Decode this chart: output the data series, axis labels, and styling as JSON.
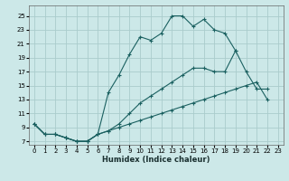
{
  "xlabel": "Humidex (Indice chaleur)",
  "bg_color": "#cce8e8",
  "grid_color": "#aacccc",
  "line_color": "#1a6060",
  "xlim": [
    -0.5,
    23.5
  ],
  "ylim": [
    6.5,
    26.5
  ],
  "yticks": [
    7,
    9,
    11,
    13,
    15,
    17,
    19,
    21,
    23,
    25
  ],
  "xticks": [
    0,
    1,
    2,
    3,
    4,
    5,
    6,
    7,
    8,
    9,
    10,
    11,
    12,
    13,
    14,
    15,
    16,
    17,
    18,
    19,
    20,
    21,
    22,
    23
  ],
  "series": [
    {
      "x": [
        0,
        1,
        2,
        3,
        4,
        5,
        6,
        7,
        8,
        9,
        10,
        11,
        12,
        13,
        14,
        15,
        16,
        17,
        18,
        19
      ],
      "y": [
        9.5,
        8.0,
        8.0,
        7.5,
        7.0,
        7.0,
        8.0,
        14.0,
        16.5,
        19.5,
        22.0,
        21.5,
        22.5,
        25.0,
        25.0,
        23.5,
        24.5,
        23.0,
        22.5,
        20.0
      ]
    },
    {
      "x": [
        0,
        1,
        2,
        3,
        4,
        5,
        6,
        7,
        8,
        9,
        10,
        11,
        12,
        13,
        14,
        15,
        16,
        17,
        18,
        19,
        20,
        21,
        22
      ],
      "y": [
        9.5,
        8.0,
        8.0,
        7.5,
        7.0,
        7.0,
        8.0,
        8.5,
        9.5,
        11.0,
        12.5,
        13.5,
        14.5,
        15.5,
        16.5,
        17.5,
        17.5,
        17.0,
        17.0,
        20.0,
        17.0,
        14.5,
        14.5
      ]
    },
    {
      "x": [
        0,
        1,
        2,
        3,
        4,
        5,
        6,
        7,
        8,
        9,
        10,
        11,
        12,
        13,
        14,
        15,
        16,
        17,
        18,
        19,
        20,
        21,
        22
      ],
      "y": [
        9.5,
        8.0,
        8.0,
        7.5,
        7.0,
        7.0,
        8.0,
        8.5,
        9.0,
        9.5,
        10.0,
        10.5,
        11.0,
        11.5,
        12.0,
        12.5,
        13.0,
        13.5,
        14.0,
        14.5,
        15.0,
        15.5,
        13.0
      ]
    }
  ]
}
